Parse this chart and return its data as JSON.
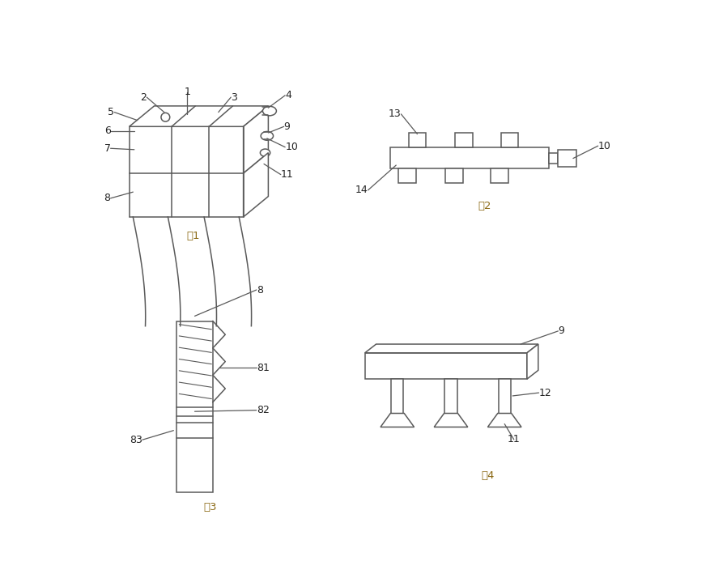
{
  "bg_color": "#ffffff",
  "line_color": "#5a5a5a",
  "label_color": "#222222",
  "fig_label_color": "#8B6914",
  "fig1_label": "图1",
  "fig2_label": "图2",
  "fig3_label": "图3",
  "fig4_label": "图4",
  "ann_fs": 9,
  "fig_label_fs": 9.5
}
